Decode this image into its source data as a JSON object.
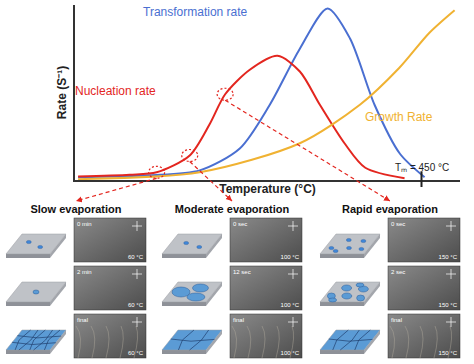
{
  "chart_data": {
    "type": "line",
    "x_label": "Temperature (°C)",
    "y_label": "Rate (S⁻¹)",
    "xlim": [
      0,
      500
    ],
    "ylim": [
      0,
      100
    ],
    "xticks": [],
    "yticks": [],
    "tick_labels": false,
    "grid": false,
    "series": [
      {
        "name": "Transformation rate",
        "color": "#4a6fd1",
        "x": [
          4,
          97,
          162,
          214,
          253,
          292,
          328,
          357,
          389,
          422,
          454
        ],
        "values": [
          1.6,
          2.7,
          5.5,
          18,
          43,
          75,
          98,
          81,
          43,
          15,
          1.6
        ]
      },
      {
        "name": "Nucleation rate",
        "color": "#e3261f",
        "x": [
          4,
          71,
          106,
          149,
          175,
          195,
          227,
          263,
          292,
          318,
          350,
          377,
          428
        ],
        "values": [
          2,
          3,
          4.4,
          14,
          32,
          49,
          63,
          71,
          62,
          43,
          21,
          7,
          1
        ]
      },
      {
        "name": "Growth Rate",
        "color": "#f0b232",
        "x": [
          4,
          162,
          292,
          370,
          421,
          460,
          493
        ],
        "values": [
          0.5,
          4.4,
          21,
          43,
          64,
          84,
          97
        ]
      }
    ],
    "annotations": [
      {
        "text": "Tₘ = 450 °C",
        "x": 450
      }
    ]
  },
  "panels": [
    {
      "title": "Slow evaporation",
      "frames": [
        {
          "time": "0 min",
          "temperature": "60 °C"
        },
        {
          "time": "2 min",
          "temperature": "60 °C"
        },
        {
          "time": "final",
          "temperature": "60 °C"
        }
      ]
    },
    {
      "title": "Moderate evaporation",
      "frames": [
        {
          "time": "0 sec",
          "temperature": "100 °C"
        },
        {
          "time": "12 sec",
          "temperature": "100 °C"
        },
        {
          "time": "final",
          "temperature": "100 °C"
        }
      ]
    },
    {
      "title": "Rapid evaporation",
      "frames": [
        {
          "time": "0 sec",
          "temperature": "150 °C"
        },
        {
          "time": "2 sec",
          "temperature": "150 °C"
        },
        {
          "time": "final",
          "temperature": "150 °C"
        }
      ]
    }
  ]
}
